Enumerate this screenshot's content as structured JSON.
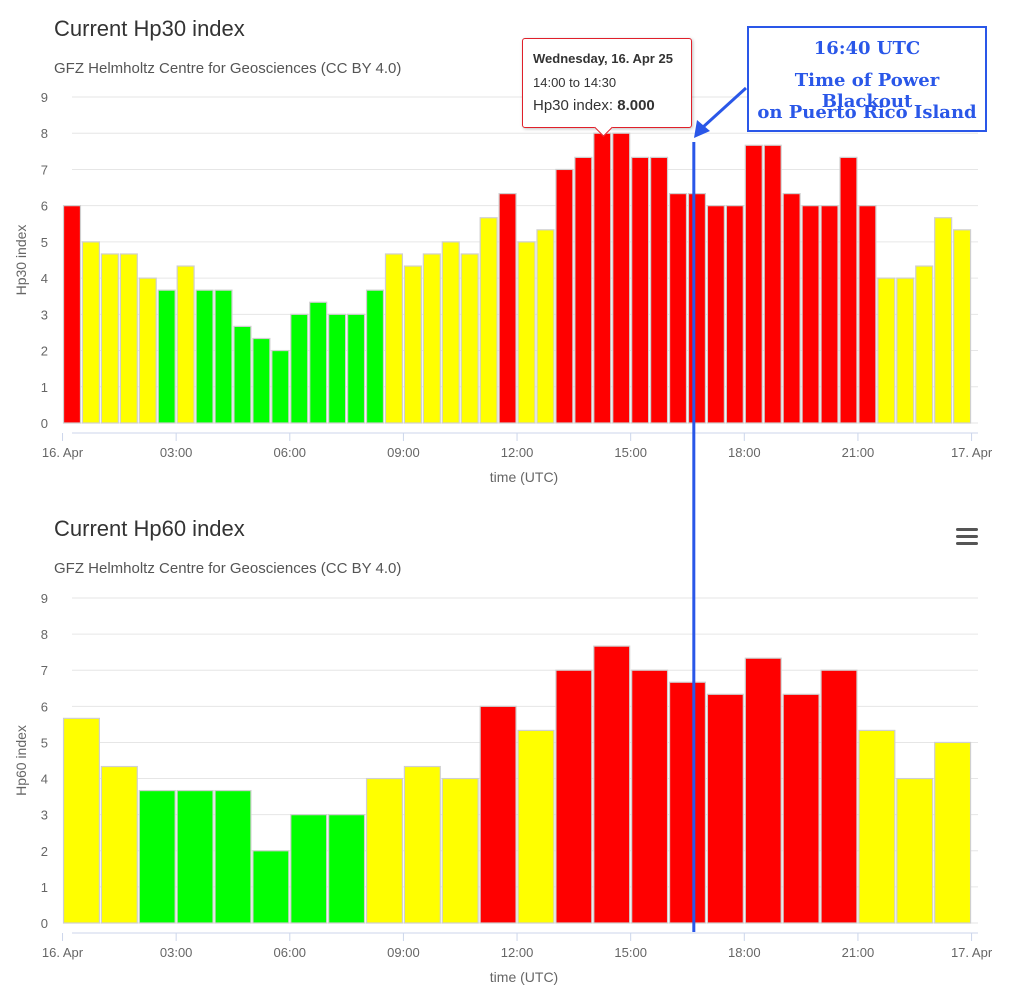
{
  "charts": {
    "hp30": {
      "title": "Current Hp30 index",
      "subtitle": "GFZ Helmholtz Centre for Geosciences (CC BY 4.0)"
    },
    "hp60": {
      "title": "Current Hp60 index",
      "subtitle": "GFZ Helmholtz Centre for Geosciences (CC BY 4.0)"
    }
  },
  "tooltip": {
    "date": "Wednesday, 16. Apr 25",
    "range": "14:00 to 14:30",
    "label": "Hp30 index: ",
    "value": "8.000"
  },
  "annotation": {
    "line1": "16:40 UTC",
    "line2": "Time of Power Blackout",
    "line3": "on Puerto Rico Island",
    "time_utc_hours": 16.667
  },
  "menu_icon": "hamburger-menu-icon",
  "colors": {
    "yellow": "#ffff00",
    "green": "#00ff00",
    "red": "#ff0000",
    "annotation": "#2a57e8",
    "grid": "#e6e6e6"
  },
  "chart_data": [
    {
      "type": "bar",
      "title": "Current Hp30 index",
      "subtitle": "GFZ Helmholtz Centre for Geosciences (CC BY 4.0)",
      "xlabel": "time (UTC)",
      "ylabel": "Hp30 index",
      "ylim": [
        0,
        9
      ],
      "yticks": [
        "0",
        "1",
        "2",
        "3",
        "4",
        "5",
        "6",
        "7",
        "8",
        "9"
      ],
      "xticks": [
        {
          "hour": 0,
          "label": "16. Apr"
        },
        {
          "hour": 3,
          "label": "03:00"
        },
        {
          "hour": 6,
          "label": "06:00"
        },
        {
          "hour": 9,
          "label": "09:00"
        },
        {
          "hour": 12,
          "label": "12:00"
        },
        {
          "hour": 15,
          "label": "15:00"
        },
        {
          "hour": 18,
          "label": "18:00"
        },
        {
          "hour": 21,
          "label": "21:00"
        },
        {
          "hour": 24,
          "label": "17. Apr"
        }
      ],
      "interval_hours": 0.5,
      "start_hours": [
        0,
        0.5,
        1,
        1.5,
        2,
        2.5,
        3,
        3.5,
        4,
        4.5,
        5,
        5.5,
        6,
        6.5,
        7,
        7.5,
        8,
        8.5,
        9,
        9.5,
        10,
        10.5,
        11,
        11.5,
        12,
        12.5,
        13,
        13.5,
        14,
        14.5,
        15,
        15.5,
        16,
        16.5,
        17,
        17.5,
        18,
        18.5,
        19,
        19.5,
        20,
        20.5,
        21,
        21.5,
        22,
        22.5,
        23,
        23.5
      ],
      "values": [
        6,
        5,
        4.667,
        4.667,
        4,
        3.667,
        4.333,
        3.667,
        3.667,
        2.667,
        2.333,
        2,
        3,
        3.333,
        3,
        3,
        3.667,
        4.667,
        4.333,
        4.667,
        5,
        4.667,
        5.667,
        6.333,
        5,
        5.333,
        7,
        7.333,
        8,
        8,
        7.333,
        7.333,
        6.333,
        6.333,
        6,
        6,
        7.667,
        7.667,
        6.333,
        6,
        6,
        7.333,
        6,
        4,
        4,
        4.333,
        5.667,
        5.333
      ],
      "grid": true,
      "legend": "none"
    },
    {
      "type": "bar",
      "title": "Current Hp60 index",
      "subtitle": "GFZ Helmholtz Centre for Geosciences (CC BY 4.0)",
      "xlabel": "time (UTC)",
      "ylabel": "Hp60 index",
      "ylim": [
        0,
        9
      ],
      "yticks": [
        "0",
        "1",
        "2",
        "3",
        "4",
        "5",
        "6",
        "7",
        "8",
        "9"
      ],
      "xticks": [
        {
          "hour": 0,
          "label": "16. Apr"
        },
        {
          "hour": 3,
          "label": "03:00"
        },
        {
          "hour": 6,
          "label": "06:00"
        },
        {
          "hour": 9,
          "label": "09:00"
        },
        {
          "hour": 12,
          "label": "12:00"
        },
        {
          "hour": 15,
          "label": "15:00"
        },
        {
          "hour": 18,
          "label": "18:00"
        },
        {
          "hour": 21,
          "label": "21:00"
        },
        {
          "hour": 24,
          "label": "17. Apr"
        }
      ],
      "interval_hours": 1,
      "start_hours": [
        0,
        1,
        2,
        3,
        4,
        5,
        6,
        7,
        8,
        9,
        10,
        11,
        12,
        13,
        14,
        15,
        16,
        17,
        18,
        19,
        20,
        21,
        22,
        23
      ],
      "values": [
        5.667,
        4.333,
        3.667,
        3.667,
        3.667,
        2,
        3,
        3,
        4,
        4.333,
        4,
        6,
        5.333,
        7,
        7.667,
        7,
        6.667,
        6.333,
        7.333,
        6.333,
        7,
        5.333,
        4,
        5
      ],
      "grid": true,
      "legend": "none"
    }
  ]
}
